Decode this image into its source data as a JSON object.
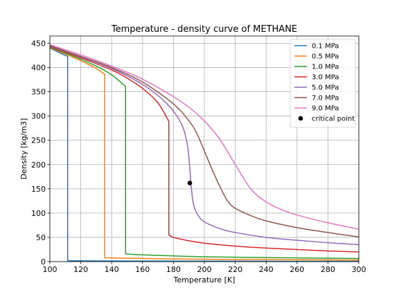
{
  "chart_data": {
    "type": "line",
    "title": "Temperature - density curve of METHANE",
    "xlabel": "Temperature [K]",
    "ylabel": "Density [kg/m3]",
    "xlim": [
      100,
      300
    ],
    "ylim": [
      0,
      465
    ],
    "xticks": [
      100,
      120,
      140,
      160,
      180,
      200,
      220,
      240,
      260,
      280,
      300
    ],
    "yticks": [
      0,
      50,
      100,
      150,
      200,
      250,
      300,
      350,
      400,
      450
    ],
    "grid": true,
    "legend_position": "top-right",
    "series": [
      {
        "name": "0.1 MPa",
        "color": "#1f77b4",
        "points": [
          [
            100,
            440
          ],
          [
            104,
            434
          ],
          [
            108,
            428
          ],
          [
            111.5,
            423
          ],
          [
            111.5,
            2
          ],
          [
            130,
            1.5
          ],
          [
            160,
            1.3
          ],
          [
            200,
            1.0
          ],
          [
            250,
            0.8
          ],
          [
            300,
            0.7
          ]
        ]
      },
      {
        "name": "0.5 MPa",
        "color": "#ff7f0e",
        "points": [
          [
            100,
            441
          ],
          [
            110,
            428
          ],
          [
            120,
            414
          ],
          [
            130,
            398
          ],
          [
            135.5,
            386
          ],
          [
            135.5,
            8
          ],
          [
            150,
            7
          ],
          [
            180,
            5.5
          ],
          [
            220,
            4.5
          ],
          [
            260,
            4
          ],
          [
            300,
            3.3
          ]
        ]
      },
      {
        "name": "1.0 MPa",
        "color": "#2ca02c",
        "points": [
          [
            100,
            442
          ],
          [
            110,
            430
          ],
          [
            120,
            417
          ],
          [
            130,
            403
          ],
          [
            140,
            385
          ],
          [
            149,
            361
          ],
          [
            149,
            16
          ],
          [
            160,
            14
          ],
          [
            200,
            10
          ],
          [
            250,
            8
          ],
          [
            300,
            6.5
          ]
        ]
      },
      {
        "name": "3.0 MPa",
        "color": "#d62728",
        "points": [
          [
            100,
            443
          ],
          [
            120,
            420
          ],
          [
            140,
            395
          ],
          [
            150,
            378
          ],
          [
            160,
            357
          ],
          [
            170,
            327
          ],
          [
            177,
            289
          ],
          [
            177,
            55
          ],
          [
            180,
            50
          ],
          [
            190,
            43
          ],
          [
            200,
            38
          ],
          [
            220,
            32
          ],
          [
            240,
            28
          ],
          [
            260,
            25
          ],
          [
            280,
            22
          ],
          [
            300,
            20
          ]
        ]
      },
      {
        "name": "5.0 MPa",
        "color": "#9467bd",
        "points": [
          [
            100,
            444
          ],
          [
            120,
            422
          ],
          [
            140,
            398
          ],
          [
            160,
            365
          ],
          [
            175,
            328
          ],
          [
            185,
            285
          ],
          [
            189,
            240
          ],
          [
            190.5,
            195
          ],
          [
            191.5,
            155
          ],
          [
            193,
            118
          ],
          [
            196,
            95
          ],
          [
            200,
            82
          ],
          [
            210,
            68
          ],
          [
            220,
            60
          ],
          [
            240,
            50
          ],
          [
            260,
            44
          ],
          [
            280,
            39
          ],
          [
            300,
            35
          ]
        ]
      },
      {
        "name": "7.0 MPa",
        "color": "#8c564b",
        "points": [
          [
            100,
            445
          ],
          [
            120,
            423
          ],
          [
            140,
            400
          ],
          [
            160,
            370
          ],
          [
            180,
            325
          ],
          [
            190,
            290
          ],
          [
            195,
            265
          ],
          [
            200,
            228
          ],
          [
            205,
            190
          ],
          [
            210,
            155
          ],
          [
            215,
            125
          ],
          [
            220,
            110
          ],
          [
            230,
            95
          ],
          [
            240,
            84
          ],
          [
            260,
            70
          ],
          [
            280,
            60
          ],
          [
            300,
            51
          ]
        ]
      },
      {
        "name": "9.0 MPa",
        "color": "#e377c2",
        "points": [
          [
            100,
            447
          ],
          [
            120,
            426
          ],
          [
            140,
            403
          ],
          [
            160,
            376
          ],
          [
            180,
            340
          ],
          [
            190,
            318
          ],
          [
            200,
            290
          ],
          [
            210,
            252
          ],
          [
            220,
            200
          ],
          [
            230,
            150
          ],
          [
            240,
            123
          ],
          [
            250,
            107
          ],
          [
            260,
            96
          ],
          [
            280,
            80
          ],
          [
            300,
            67
          ]
        ]
      }
    ],
    "critical_point": {
      "name": "critical point",
      "x": 190.6,
      "y": 162,
      "color": "#000000"
    }
  }
}
